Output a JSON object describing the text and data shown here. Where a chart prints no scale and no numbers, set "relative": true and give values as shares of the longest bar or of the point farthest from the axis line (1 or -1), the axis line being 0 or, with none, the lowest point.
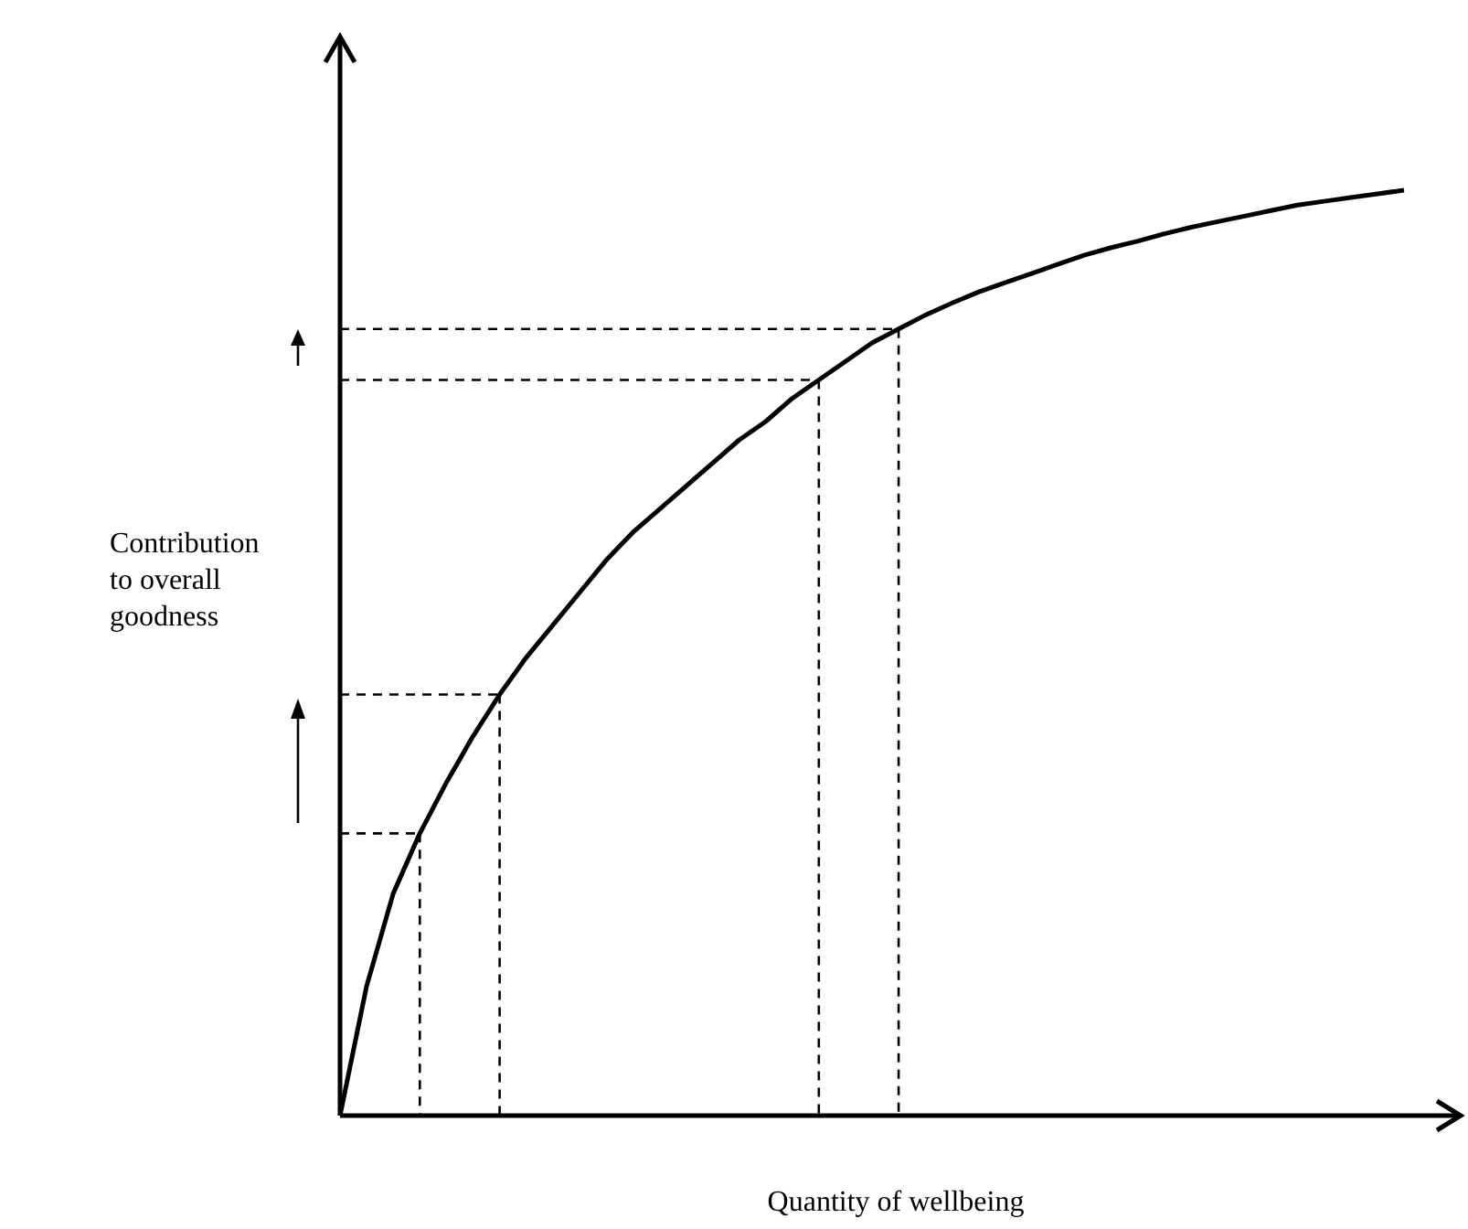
{
  "chart_data": {
    "type": "line",
    "relative": true,
    "xlabel": "Quantity of wellbeing",
    "ylabel": "Contribution to overall goodness",
    "categories": [
      null,
      null,
      null,
      null,
      null,
      null,
      null,
      null,
      null,
      null,
      null,
      null,
      null,
      null,
      null,
      null,
      null,
      null,
      null,
      null,
      null,
      null,
      null,
      null,
      null,
      null,
      null,
      null,
      null,
      null,
      null,
      null,
      null,
      null,
      null,
      null,
      null,
      null,
      null,
      null,
      null
    ],
    "series": [
      {
        "color": "#000000",
        "line_style": "solid",
        "values": [
          0,
          0.14,
          0.24,
          0.305,
          0.36,
          0.41,
          0.455,
          0.495,
          0.53,
          0.565,
          0.6,
          0.63,
          0.655,
          0.68,
          0.705,
          0.73,
          0.75,
          0.775,
          0.795,
          0.815,
          0.835,
          0.85,
          0.865,
          0.878,
          0.89,
          0.9,
          0.91,
          0.92,
          0.93,
          0.938,
          0.945,
          0.953,
          0.96,
          0.966,
          0.972,
          0.978,
          0.984,
          0.988,
          0.992,
          0.996,
          1
        ]
      },
      {
        "color": "#000000",
        "line_style": "dashed",
        "values": [
          0.305,
          0.305,
          0.305,
          0.305,
          null,
          null,
          null,
          null,
          null,
          null,
          null,
          null,
          null,
          null,
          null,
          null,
          null,
          null,
          null,
          null,
          null,
          null,
          null,
          null,
          null,
          null,
          null,
          null,
          null,
          null,
          null,
          null,
          null,
          null,
          null,
          null,
          null,
          null,
          null,
          null,
          null
        ]
      },
      {
        "color": "#000000",
        "line_style": "dashed",
        "values": [
          0.455,
          0.455,
          0.455,
          0.455,
          0.455,
          0.455,
          0.455,
          null,
          null,
          null,
          null,
          null,
          null,
          null,
          null,
          null,
          null,
          null,
          null,
          null,
          null,
          null,
          null,
          null,
          null,
          null,
          null,
          null,
          null,
          null,
          null,
          null,
          null,
          null,
          null,
          null,
          null,
          null,
          null,
          null,
          null
        ]
      },
      {
        "color": "#000000",
        "line_style": "dashed",
        "values": [
          0.795,
          0.795,
          0.795,
          0.795,
          0.795,
          0.795,
          0.795,
          0.795,
          0.795,
          0.795,
          0.795,
          0.795,
          0.795,
          0.795,
          0.795,
          0.795,
          0.795,
          0.795,
          0.795,
          null,
          null,
          null,
          null,
          null,
          null,
          null,
          null,
          null,
          null,
          null,
          null,
          null,
          null,
          null,
          null,
          null,
          null,
          null,
          null,
          null,
          null
        ]
      },
      {
        "color": "#000000",
        "line_style": "dashed",
        "values": [
          0.85,
          0.85,
          0.85,
          0.85,
          0.85,
          0.85,
          0.85,
          0.85,
          0.85,
          0.85,
          0.85,
          0.85,
          0.85,
          0.85,
          0.85,
          0.85,
          0.85,
          0.85,
          0.85,
          0.85,
          0.85,
          0.85,
          null,
          null,
          null,
          null,
          null,
          null,
          null,
          null,
          null,
          null,
          null,
          null,
          null,
          null,
          null,
          null,
          null,
          null,
          null
        ]
      }
    ]
  }
}
